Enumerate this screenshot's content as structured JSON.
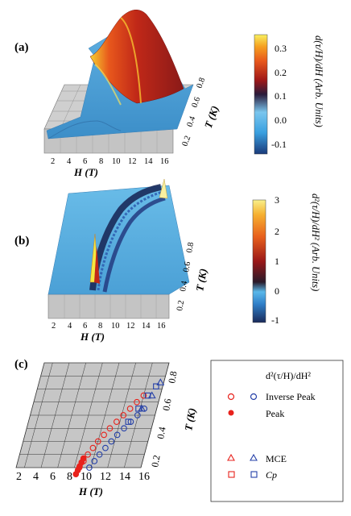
{
  "panels": {
    "a": {
      "label": "(a)",
      "x_label": "H (T)",
      "y_label": "T (K)",
      "x_ticks": [
        "2",
        "4",
        "6",
        "8",
        "10",
        "12",
        "14",
        "16"
      ],
      "y_ticks": [
        "0.2",
        "0.4",
        "0.6",
        "0.8"
      ],
      "colorbar": {
        "title": "d(τ/H)/dH (Arb. Units)",
        "ticks": [
          "0.3",
          "0.2",
          "0.1",
          "0.0",
          "-0.1"
        ]
      }
    },
    "b": {
      "label": "(b)",
      "x_label": "H (T)",
      "y_label": "T (K)",
      "x_ticks": [
        "2",
        "4",
        "6",
        "8",
        "10",
        "12",
        "14",
        "16"
      ],
      "y_ticks": [
        "0.2",
        "0.4",
        "0.6",
        "0.8"
      ],
      "colorbar": {
        "title": "d²(τ/H)/dH² (Arb. Units)",
        "ticks": [
          "3",
          "2",
          "1",
          "0",
          "-1"
        ]
      }
    },
    "c": {
      "label": "(c)",
      "x_label": "H (T)",
      "y_label": "T (K)",
      "x_ticks": [
        "2",
        "4",
        "6",
        "8",
        "10",
        "12",
        "14",
        "16"
      ],
      "y_ticks": [
        "0.2",
        "0.4",
        "0.6",
        "0.8"
      ]
    }
  },
  "legend": {
    "header": "d²(τ/H)/dH²",
    "entries": [
      {
        "label": "Inverse Peak",
        "markers": [
          "red-open-circle",
          "blue-open-circle"
        ]
      },
      {
        "label": "Peak",
        "markers": [
          "red-filled-circle"
        ]
      },
      {
        "label": "MCE",
        "markers": [
          "red-open-triangle",
          "blue-open-triangle"
        ]
      },
      {
        "label": "Cp",
        "markers": [
          "red-open-square",
          "blue-open-square"
        ]
      }
    ]
  },
  "colors": {
    "red": "#e8221c",
    "blue": "#2540a8",
    "surface_base": "#5aa8dd",
    "floor": "#bdbdbd"
  },
  "chart_data": [
    {
      "type": "heatmap",
      "panel": "a",
      "description_series": [
        {
          "name": "",
          "H": [
            2,
            4,
            6,
            8,
            9,
            10,
            12,
            14,
            16
          ],
          "T": [
            0.8,
            0.8,
            0.8,
            0.8,
            0.8,
            0.8,
            0.8,
            0.8,
            0.8
          ],
          "value": [
            -0.1,
            -0.1,
            -0.05,
            0.1,
            0.3,
            0.25,
            0.15,
            0.1,
            0.05
          ]
        }
      ],
      "xlim": [
        1,
        16
      ],
      "ylim": [
        0.1,
        0.9
      ],
      "clim": [
        -0.15,
        0.35
      ]
    },
    {
      "type": "heatmap",
      "panel": "b",
      "xlim": [
        1,
        16
      ],
      "ylim": [
        0.1,
        0.9
      ],
      "clim": [
        -1,
        3
      ]
    },
    {
      "type": "scatter",
      "panel": "c",
      "series": [
        {
          "name": "Inverse Peak (red)",
          "H": [
            8.6,
            8.9,
            9.2,
            9.6,
            10.0,
            10.5,
            11.0,
            11.6,
            12.2,
            12.8,
            13.4,
            14.0
          ],
          "T": [
            0.1,
            0.15,
            0.2,
            0.25,
            0.3,
            0.35,
            0.4,
            0.45,
            0.5,
            0.55,
            0.6,
            0.65
          ]
        },
        {
          "name": "Inverse Peak (blue)",
          "H": [
            9.8,
            10.2,
            10.6,
            11.1,
            11.6,
            12.1,
            12.7,
            13.3,
            13.9,
            14.5
          ],
          "T": [
            0.1,
            0.15,
            0.2,
            0.25,
            0.3,
            0.35,
            0.4,
            0.45,
            0.5,
            0.55
          ]
        },
        {
          "name": "Peak",
          "H": [
            8.4,
            8.5,
            8.6,
            8.7,
            8.8
          ],
          "T": [
            0.05,
            0.08,
            0.11,
            0.14,
            0.17
          ]
        },
        {
          "name": "MCE",
          "H": [
            14.2,
            15.0,
            15.6
          ],
          "T": [
            0.55,
            0.65,
            0.75
          ]
        },
        {
          "name": "Cp",
          "H": [
            13.0,
            13.8,
            14.5,
            15.2
          ],
          "T": [
            0.45,
            0.55,
            0.65,
            0.72
          ]
        }
      ],
      "xlim": [
        1,
        16
      ],
      "ylim": [
        0.1,
        0.9
      ]
    }
  ]
}
